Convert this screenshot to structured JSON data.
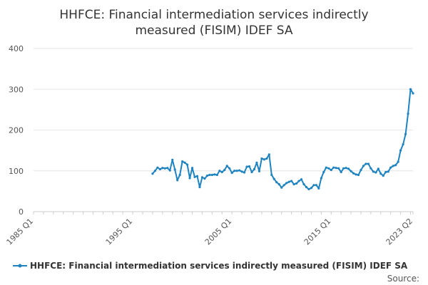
{
  "chart_data": {
    "type": "line",
    "title_lines": [
      "HHFCE: Financial intermediation services indirectly",
      "measured (FISIM) IDEF SA"
    ],
    "xlabel": "",
    "ylabel": "",
    "ylim": [
      0,
      400
    ],
    "y_ticks": [
      "0",
      "100",
      "200",
      "300",
      "400"
    ],
    "y_tick_values": [
      0,
      100,
      200,
      300,
      400
    ],
    "x_range_quarters": [
      0,
      153
    ],
    "x_ticks": [
      {
        "label": "1985 Q1",
        "q": 0
      },
      {
        "label": "1995 Q1",
        "q": 40
      },
      {
        "label": "2005 Q1",
        "q": 80
      },
      {
        "label": "2015 Q1",
        "q": 120
      },
      {
        "label": "2023 Q2",
        "q": 153
      }
    ],
    "grid": true,
    "series": [
      {
        "name": "HHFCE: Financial intermediation services indirectly measured (FISIM) IDEF SA",
        "color": "#1f83c0",
        "start_q": 48,
        "values": [
          93,
          100,
          108,
          104,
          107,
          106,
          107,
          101,
          127,
          103,
          77,
          90,
          123,
          120,
          115,
          82,
          107,
          85,
          87,
          60,
          84,
          81,
          88,
          90,
          90,
          91,
          90,
          100,
          97,
          102,
          112,
          106,
          95,
          100,
          100,
          101,
          98,
          96,
          110,
          111,
          97,
          104,
          120,
          99,
          130,
          128,
          130,
          140,
          90,
          80,
          72,
          67,
          59,
          65,
          70,
          73,
          75,
          67,
          69,
          75,
          79,
          67,
          60,
          55,
          58,
          65,
          65,
          57,
          82,
          97,
          108,
          106,
          102,
          108,
          107,
          106,
          97,
          106,
          107,
          105,
          99,
          94,
          91,
          90,
          102,
          112,
          117,
          117,
          106,
          98,
          96,
          105,
          93,
          88,
          97,
          98,
          108,
          112,
          114,
          122,
          150,
          165,
          190,
          240,
          300,
          290
        ]
      }
    ],
    "legend": {
      "position": "bottom",
      "label": "HHFCE: Financial intermediation services indirectly measured (FISIM) IDEF SA"
    },
    "source_label": "Source:"
  }
}
